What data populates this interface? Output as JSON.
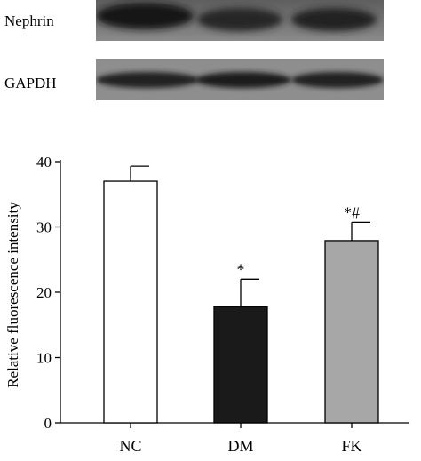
{
  "blot": {
    "bands": [
      {
        "label": "Nephrin"
      },
      {
        "label": "GAPDH"
      }
    ]
  },
  "chart_data": {
    "type": "bar",
    "categories": [
      "NC",
      "DM",
      "FK"
    ],
    "values": [
      37.0,
      17.8,
      27.9
    ],
    "errors": [
      2.3,
      4.2,
      2.8
    ],
    "bar_colors": [
      "#ffffff",
      "#1a1a1a",
      "#a7a7a7"
    ],
    "annotations": [
      "",
      "*",
      "*#"
    ],
    "ylabel": "Relative fluorescence intensity",
    "xlabel": "",
    "ylim": [
      0,
      40
    ],
    "yticks": [
      0,
      10,
      20,
      30,
      40
    ],
    "grid": false
  }
}
